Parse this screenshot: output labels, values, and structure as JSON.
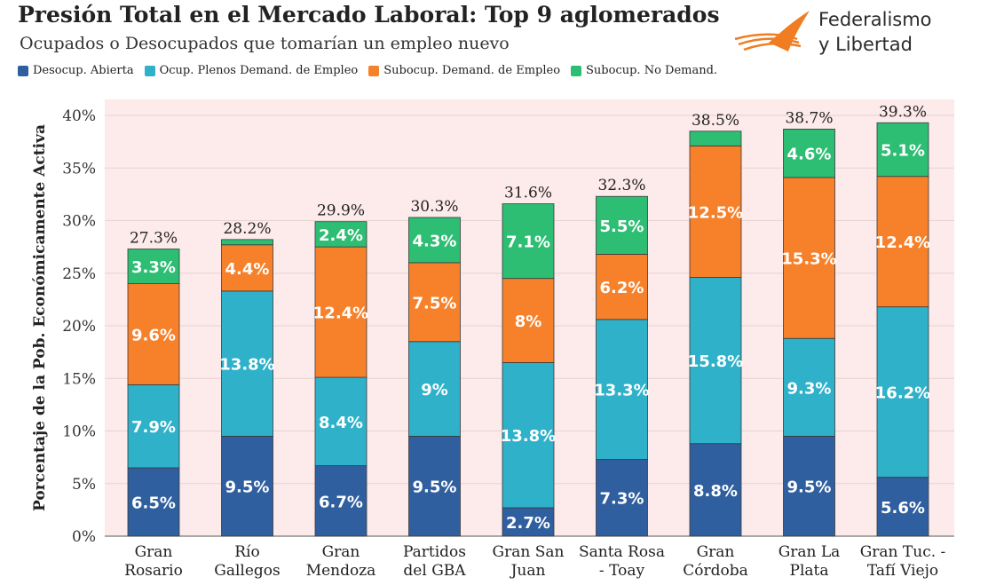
{
  "header": {
    "title": "Presión Total en el Mercado Laboral: Top 9 aglomerados",
    "subtitle": "Ocupados o Desocupados que tomarían un empleo nuevo"
  },
  "logo": {
    "line1": "Federalismo",
    "line2": "y Libertad",
    "icon": "orange-swoosh-logo",
    "color": "#f07d21"
  },
  "chart_data": {
    "type": "bar",
    "stacked": true,
    "title": "Presión Total en el Mercado Laboral: Top 9 aglomerados",
    "subtitle": "Ocupados o Desocupados que tomarían un empleo nuevo",
    "ylabel": "Porcentaje de la Pob. Económicamente Activa",
    "xlabel": "",
    "ylim": [
      0,
      40
    ],
    "yticks": [
      0,
      5,
      10,
      15,
      20,
      25,
      30,
      35,
      40
    ],
    "ytick_labels": [
      "0%",
      "5%",
      "10%",
      "15%",
      "20%",
      "25%",
      "30%",
      "35%",
      "40%"
    ],
    "legend_position": "top",
    "grid": true,
    "background_color": "#fdeaea",
    "categories": [
      [
        "Gran",
        "Rosario"
      ],
      [
        "Río",
        "Gallegos"
      ],
      [
        "Gran",
        "Mendoza"
      ],
      [
        "Partidos",
        "del GBA"
      ],
      [
        "Gran San",
        "Juan"
      ],
      [
        "Santa Rosa",
        "- Toay"
      ],
      [
        "Gran",
        "Córdoba"
      ],
      [
        "Gran La",
        "Plata"
      ],
      [
        "Gran Tuc. -",
        "Tafí Viejo"
      ]
    ],
    "series": [
      {
        "name": "Desocup. Abierta",
        "color": "#2f5f9e",
        "values": [
          6.5,
          9.5,
          6.7,
          9.5,
          2.7,
          7.3,
          8.8,
          9.5,
          5.6
        ],
        "labels": [
          "6.5%",
          "9.5%",
          "6.7%",
          "9.5%",
          "2.7%",
          "7.3%",
          "8.8%",
          "9.5%",
          "5.6%"
        ]
      },
      {
        "name": "Ocup. Plenos Demand. de Empleo",
        "color": "#2fb1c9",
        "values": [
          7.9,
          13.8,
          8.4,
          9.0,
          13.8,
          13.3,
          15.8,
          9.3,
          16.2
        ],
        "labels": [
          "7.9%",
          "13.8%",
          "8.4%",
          "9%",
          "13.8%",
          "13.3%",
          "15.8%",
          "9.3%",
          "16.2%"
        ]
      },
      {
        "name": "Subocup. Demand. de Empleo",
        "color": "#f7812a",
        "values": [
          9.6,
          4.4,
          12.4,
          7.5,
          8.0,
          6.2,
          12.5,
          15.3,
          12.4
        ],
        "labels": [
          "9.6%",
          "4.4%",
          "12.4%",
          "7.5%",
          "8%",
          "6.2%",
          "12.5%",
          "15.3%",
          "12.4%"
        ]
      },
      {
        "name": "Subocup. No Demand.",
        "color": "#2dbe73",
        "values": [
          3.3,
          0.5,
          2.4,
          4.3,
          7.1,
          5.5,
          1.4,
          4.6,
          5.1
        ],
        "labels": [
          "3.3%",
          "",
          "2.4%",
          "4.3%",
          "7.1%",
          "5.5%",
          "",
          "4.6%",
          "5.1%"
        ]
      }
    ],
    "totals": [
      "27.3%",
      "28.2%",
      "29.9%",
      "30.3%",
      "31.6%",
      "32.3%",
      "38.5%",
      "38.7%",
      "39.3%"
    ]
  }
}
